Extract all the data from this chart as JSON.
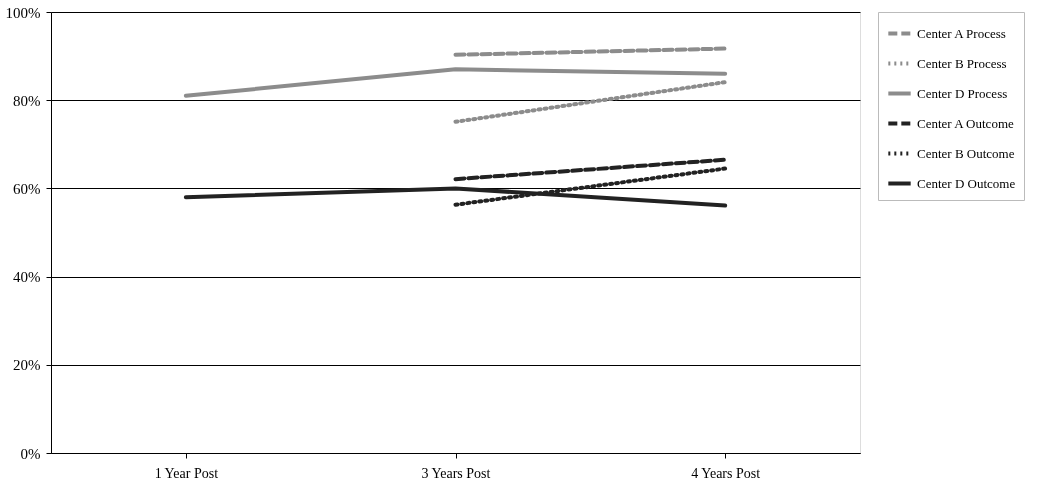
{
  "chart_data": {
    "type": "line",
    "categories": [
      "1 Year Post",
      "3 Years Post",
      "4 Years Post"
    ],
    "series": [
      {
        "name": "Center A Process",
        "color": "#8c8c8c",
        "line_style": "dashed",
        "values": [
          null,
          90.3,
          91.7
        ]
      },
      {
        "name": "Center B Process",
        "color": "#8c8c8c",
        "line_style": "dotted",
        "values": [
          null,
          75.1,
          84.1
        ]
      },
      {
        "name": "Center D Process",
        "color": "#8c8c8c",
        "line_style": "solid",
        "values": [
          81.0,
          87.0,
          86.0
        ]
      },
      {
        "name": "Center A Outcome",
        "color": "#222222",
        "line_style": "dashed",
        "values": [
          null,
          62.1,
          66.5
        ]
      },
      {
        "name": "Center B Outcome",
        "color": "#222222",
        "line_style": "dotted",
        "values": [
          null,
          56.3,
          64.5
        ]
      },
      {
        "name": "Center D Outcome",
        "color": "#222222",
        "line_style": "solid",
        "values": [
          58.0,
          60.0,
          56.1
        ]
      }
    ],
    "ylim": [
      0,
      100
    ],
    "yticks": [
      {
        "value": 0,
        "label": "0%"
      },
      {
        "value": 20,
        "label": "20%"
      },
      {
        "value": 40,
        "label": "40%"
      },
      {
        "value": 60,
        "label": "60%"
      },
      {
        "value": 80,
        "label": "80%"
      },
      {
        "value": 100,
        "label": "100%"
      }
    ],
    "grid": "y",
    "legend": "right",
    "marker": "none"
  }
}
